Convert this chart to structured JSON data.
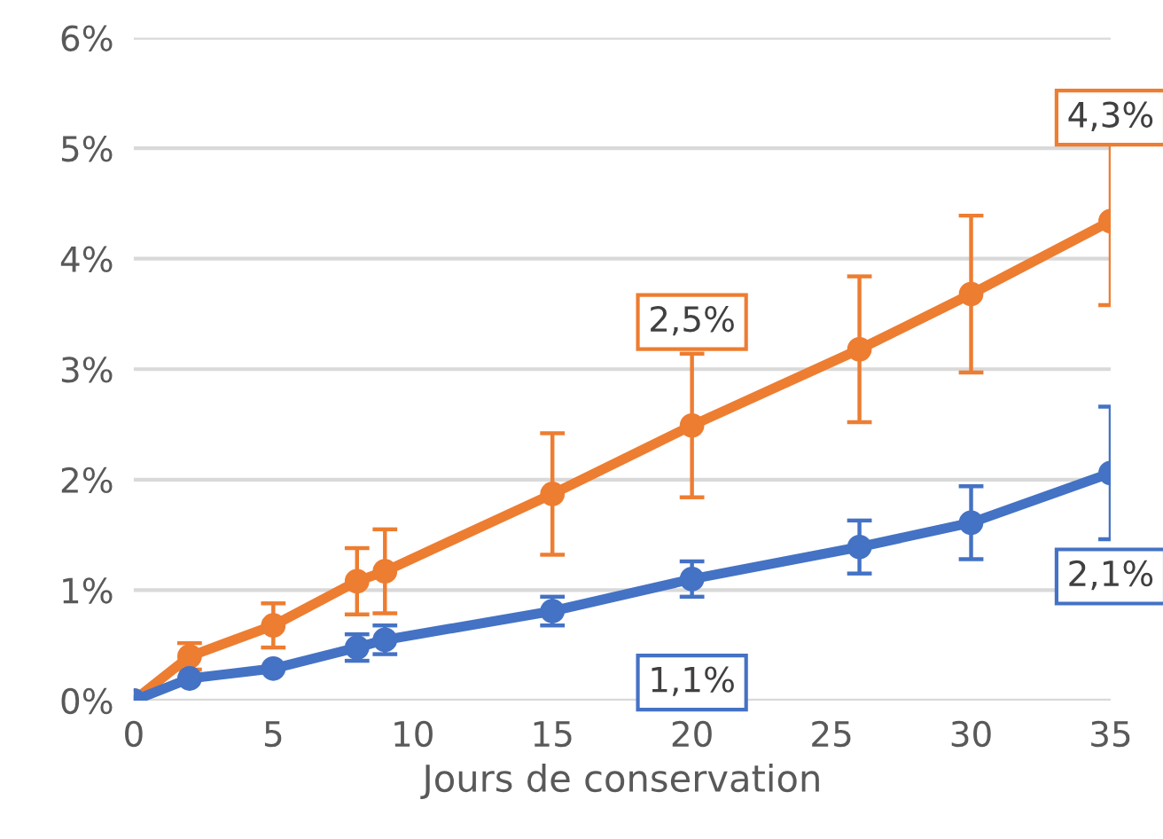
{
  "chart_data": {
    "type": "line",
    "xlabel": "Jours de conservation",
    "xlim": [
      0,
      35
    ],
    "xticks": [
      0,
      5,
      10,
      15,
      20,
      25,
      30,
      35
    ],
    "ylim": [
      0,
      6
    ],
    "yticks": [
      {
        "value": 0,
        "label": "0%"
      },
      {
        "value": 1,
        "label": "1%"
      },
      {
        "value": 2,
        "label": "2%"
      },
      {
        "value": 3,
        "label": "3%"
      },
      {
        "value": 4,
        "label": "4%"
      },
      {
        "value": 5,
        "label": "5%"
      },
      {
        "value": 6,
        "label": "6%"
      }
    ],
    "grid": "y",
    "legend": false,
    "marker": "circle",
    "line_style": "solid",
    "x": [
      0,
      2,
      5,
      8,
      9,
      15,
      20,
      26,
      30,
      35
    ],
    "series": [
      {
        "color": "#ed7d31",
        "values": [
          0,
          0.4,
          0.68,
          1.08,
          1.17,
          1.87,
          2.49,
          3.18,
          3.68,
          4.34
        ],
        "errors": [
          null,
          0.12,
          0.2,
          0.3,
          0.38,
          0.55,
          0.65,
          0.66,
          0.71,
          0.76
        ],
        "value_labels": [
          null,
          null,
          null,
          null,
          null,
          null,
          "2,5%",
          null,
          null,
          "4,3%"
        ]
      },
      {
        "color": "#4472c4",
        "values": [
          0,
          0.2,
          0.29,
          0.48,
          0.55,
          0.81,
          1.1,
          1.39,
          1.61,
          2.06
        ],
        "errors": [
          null,
          null,
          null,
          0.12,
          0.13,
          0.13,
          0.16,
          0.24,
          0.33,
          0.6
        ],
        "value_labels": [
          null,
          null,
          null,
          null,
          null,
          null,
          "1,1%",
          null,
          null,
          "2,1%"
        ]
      }
    ]
  }
}
